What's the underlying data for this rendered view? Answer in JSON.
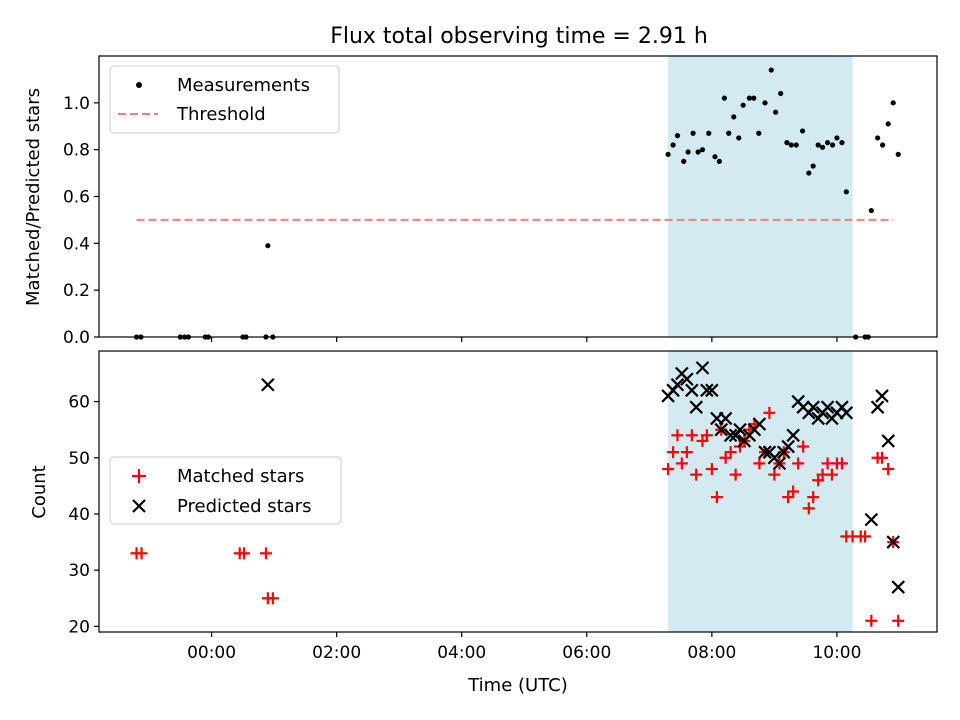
{
  "title": "Flux total observing time = 2.91 h",
  "chart_data": [
    {
      "type": "scatter",
      "ylabel": "Matched/Predicted stars",
      "ylim": [
        0.0,
        1.2
      ],
      "yticks": [
        0.0,
        0.2,
        0.4,
        0.6,
        0.8,
        1.0
      ],
      "ytick_labels": [
        "0.0",
        "0.2",
        "0.4",
        "0.6",
        "0.8",
        "1.0"
      ],
      "shaded_region": {
        "x": [
          7.3,
          10.25
        ],
        "color": "#d3eaf1"
      },
      "legend": {
        "position": "top-left",
        "entries": [
          {
            "label": "Measurements",
            "marker": "dot",
            "color": "#000000"
          },
          {
            "label": "Threshold",
            "marker": "dashed-line",
            "color": "#f08080"
          }
        ]
      },
      "series": [
        {
          "name": "Measurements",
          "color": "#000000",
          "points": [
            [
              -1.2,
              0
            ],
            [
              -1.13,
              0
            ],
            [
              -0.5,
              0
            ],
            [
              -0.43,
              0
            ],
            [
              -0.37,
              0
            ],
            [
              -0.1,
              0
            ],
            [
              -0.05,
              0
            ],
            [
              0.5,
              0
            ],
            [
              0.55,
              0
            ],
            [
              0.87,
              0
            ],
            [
              0.9,
              0.39
            ],
            [
              0.98,
              0
            ],
            [
              7.3,
              0.78
            ],
            [
              7.38,
              0.82
            ],
            [
              7.45,
              0.86
            ],
            [
              7.55,
              0.75
            ],
            [
              7.62,
              0.79
            ],
            [
              7.7,
              0.87
            ],
            [
              7.78,
              0.79
            ],
            [
              7.85,
              0.8
            ],
            [
              7.95,
              0.87
            ],
            [
              8.05,
              0.77
            ],
            [
              8.12,
              0.75
            ],
            [
              8.2,
              1.02
            ],
            [
              8.27,
              0.87
            ],
            [
              8.35,
              0.94
            ],
            [
              8.43,
              0.85
            ],
            [
              8.5,
              0.99
            ],
            [
              8.6,
              1.02
            ],
            [
              8.67,
              1.02
            ],
            [
              8.75,
              0.87
            ],
            [
              8.85,
              1.0
            ],
            [
              8.95,
              1.14
            ],
            [
              9.02,
              0.96
            ],
            [
              9.1,
              1.04
            ],
            [
              9.2,
              0.83
            ],
            [
              9.27,
              0.82
            ],
            [
              9.35,
              0.82
            ],
            [
              9.45,
              0.88
            ],
            [
              9.55,
              0.7
            ],
            [
              9.62,
              0.73
            ],
            [
              9.7,
              0.82
            ],
            [
              9.77,
              0.81
            ],
            [
              9.85,
              0.83
            ],
            [
              9.93,
              0.82
            ],
            [
              10.0,
              0.85
            ],
            [
              10.08,
              0.83
            ],
            [
              10.15,
              0.62
            ],
            [
              10.3,
              0
            ],
            [
              10.45,
              0
            ],
            [
              10.5,
              0
            ],
            [
              10.55,
              0.54
            ],
            [
              10.65,
              0.85
            ],
            [
              10.73,
              0.82
            ],
            [
              10.82,
              0.91
            ],
            [
              10.9,
              1.0
            ],
            [
              10.98,
              0.78
            ]
          ]
        },
        {
          "name": "Threshold",
          "color": "#f08080",
          "x": [
            -1.2,
            10.9
          ],
          "y": [
            0.5,
            0.5
          ]
        }
      ]
    },
    {
      "type": "scatter",
      "xlabel": "Time (UTC)",
      "ylabel": "Count",
      "xlim": [
        -1.8,
        11.6
      ],
      "ylim": [
        19,
        69
      ],
      "xticks": [
        0,
        2,
        4,
        6,
        8,
        10
      ],
      "xtick_labels": [
        "00:00",
        "02:00",
        "04:00",
        "06:00",
        "08:00",
        "10:00"
      ],
      "yticks": [
        20,
        30,
        40,
        50,
        60
      ],
      "ytick_labels": [
        "20",
        "30",
        "40",
        "50",
        "60"
      ],
      "shaded_region": {
        "x": [
          7.3,
          10.25
        ],
        "color": "#d3eaf1"
      },
      "legend": {
        "position": "center-left",
        "entries": [
          {
            "label": "Matched stars",
            "marker": "plus",
            "color": "#ff0000"
          },
          {
            "label": "Predicted stars",
            "marker": "x",
            "color": "#000000"
          }
        ]
      },
      "series": [
        {
          "name": "Matched stars",
          "color": "#ff0000",
          "points": [
            [
              -1.2,
              33
            ],
            [
              -1.12,
              33
            ],
            [
              0.45,
              33
            ],
            [
              0.52,
              33
            ],
            [
              0.87,
              33
            ],
            [
              0.9,
              25
            ],
            [
              0.98,
              25
            ],
            [
              7.3,
              48
            ],
            [
              7.38,
              51
            ],
            [
              7.45,
              54
            ],
            [
              7.52,
              49
            ],
            [
              7.6,
              51
            ],
            [
              7.68,
              54
            ],
            [
              7.75,
              47
            ],
            [
              7.85,
              53
            ],
            [
              7.92,
              54
            ],
            [
              8.0,
              48
            ],
            [
              8.08,
              43
            ],
            [
              8.15,
              55
            ],
            [
              8.22,
              50
            ],
            [
              8.3,
              51
            ],
            [
              8.38,
              47
            ],
            [
              8.45,
              52
            ],
            [
              8.52,
              53
            ],
            [
              8.6,
              55
            ],
            [
              8.68,
              56
            ],
            [
              8.76,
              49
            ],
            [
              8.85,
              51
            ],
            [
              8.92,
              58
            ],
            [
              9.0,
              47
            ],
            [
              9.08,
              49
            ],
            [
              9.15,
              51
            ],
            [
              9.22,
              43
            ],
            [
              9.3,
              44
            ],
            [
              9.38,
              49
            ],
            [
              9.46,
              52
            ],
            [
              9.55,
              41
            ],
            [
              9.62,
              43
            ],
            [
              9.7,
              46
            ],
            [
              9.77,
              47
            ],
            [
              9.85,
              49
            ],
            [
              9.92,
              47
            ],
            [
              10.0,
              49
            ],
            [
              10.08,
              49
            ],
            [
              10.15,
              36
            ],
            [
              10.25,
              36
            ],
            [
              10.38,
              36
            ],
            [
              10.45,
              36
            ],
            [
              10.55,
              21
            ],
            [
              10.65,
              50
            ],
            [
              10.72,
              50
            ],
            [
              10.82,
              48
            ],
            [
              10.9,
              35
            ],
            [
              10.98,
              21
            ]
          ]
        },
        {
          "name": "Predicted stars",
          "color": "#000000",
          "points": [
            [
              0.9,
              63
            ],
            [
              7.3,
              61
            ],
            [
              7.38,
              62
            ],
            [
              7.45,
              63
            ],
            [
              7.52,
              65
            ],
            [
              7.6,
              64
            ],
            [
              7.68,
              62
            ],
            [
              7.75,
              59
            ],
            [
              7.85,
              66
            ],
            [
              7.92,
              62
            ],
            [
              8.0,
              62
            ],
            [
              8.08,
              57
            ],
            [
              8.15,
              55
            ],
            [
              8.22,
              57
            ],
            [
              8.3,
              54
            ],
            [
              8.38,
              54
            ],
            [
              8.45,
              55
            ],
            [
              8.52,
              53
            ],
            [
              8.6,
              54
            ],
            [
              8.68,
              55
            ],
            [
              8.76,
              56
            ],
            [
              8.85,
              51
            ],
            [
              8.92,
              51
            ],
            [
              9.0,
              50
            ],
            [
              9.08,
              49
            ],
            [
              9.15,
              51
            ],
            [
              9.22,
              52
            ],
            [
              9.3,
              54
            ],
            [
              9.38,
              60
            ],
            [
              9.46,
              59
            ],
            [
              9.55,
              58
            ],
            [
              9.62,
              59
            ],
            [
              9.7,
              57
            ],
            [
              9.77,
              58
            ],
            [
              9.85,
              59
            ],
            [
              9.92,
              57
            ],
            [
              10.0,
              58
            ],
            [
              10.08,
              59
            ],
            [
              10.15,
              58
            ],
            [
              10.55,
              39
            ],
            [
              10.65,
              59
            ],
            [
              10.72,
              61
            ],
            [
              10.82,
              53
            ],
            [
              10.9,
              35
            ],
            [
              10.98,
              27
            ]
          ]
        }
      ]
    }
  ]
}
